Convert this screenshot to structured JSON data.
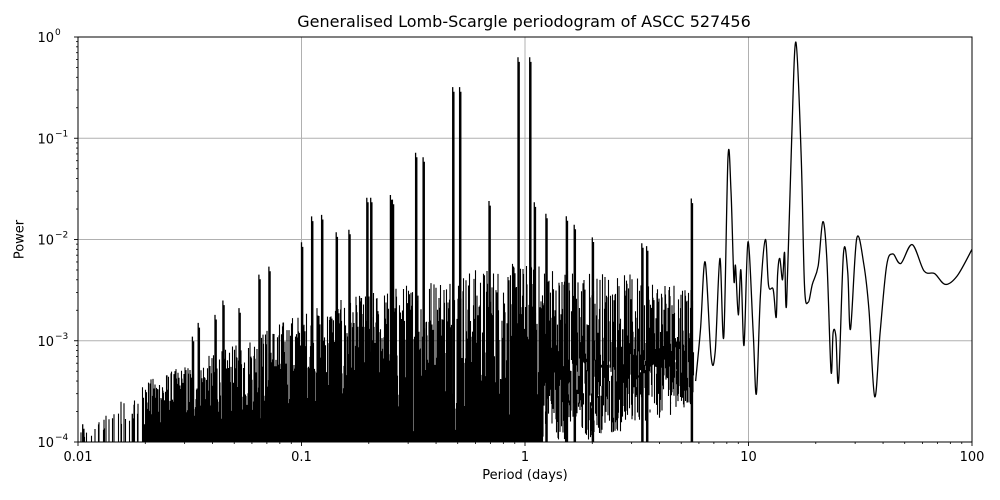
{
  "chart_data": {
    "type": "line",
    "title": "Generalised Lomb-Scargle periodogram of ASCC 527456",
    "xlabel": "Period (days)",
    "ylabel": "Power",
    "xscale": "log",
    "yscale": "log",
    "xlim": [
      0.01,
      100
    ],
    "ylim": [
      0.0001,
      1
    ],
    "grid": true,
    "legend": null,
    "x_ticks": [
      {
        "value": 0.01,
        "label": "0.01"
      },
      {
        "value": 0.1,
        "label": "0.1"
      },
      {
        "value": 1,
        "label": "1"
      },
      {
        "value": 10,
        "label": "10"
      },
      {
        "value": 100,
        "label": "100"
      }
    ],
    "y_ticks": [
      {
        "value": 0.0001,
        "base": "10",
        "exp": "−4"
      },
      {
        "value": 0.001,
        "base": "10",
        "exp": "−3"
      },
      {
        "value": 0.01,
        "base": "10",
        "exp": "−2"
      },
      {
        "value": 0.1,
        "base": "10",
        "exp": "−1"
      },
      {
        "value": 1,
        "base": "10",
        "exp": "0"
      }
    ],
    "line_color": "#000000",
    "grid_color": "#b0b0b0",
    "noise_floor": [
      {
        "period": 0.01,
        "low": 0.0001,
        "high": 0.00012
      },
      {
        "period": 0.02,
        "low": 0.0001,
        "high": 0.0004
      },
      {
        "period": 0.05,
        "low": 0.0001,
        "high": 0.0009
      },
      {
        "period": 0.1,
        "low": 0.0001,
        "high": 0.002
      },
      {
        "period": 0.2,
        "low": 0.0001,
        "high": 0.003
      },
      {
        "period": 0.5,
        "low": 0.0001,
        "high": 0.005
      },
      {
        "period": 1,
        "low": 0.0001,
        "high": 0.006
      },
      {
        "period": 2,
        "low": 0.0001,
        "high": 0.005
      },
      {
        "period": 5,
        "low": 0.0002,
        "high": 0.004
      }
    ],
    "peaks": [
      {
        "period": 0.0105,
        "power": 0.00015
      },
      {
        "period": 0.0175,
        "power": 0.00019
      },
      {
        "period": 0.0325,
        "power": 0.0011
      },
      {
        "period": 0.0345,
        "power": 0.0015
      },
      {
        "period": 0.041,
        "power": 0.0018
      },
      {
        "period": 0.0445,
        "power": 0.0025
      },
      {
        "period": 0.0525,
        "power": 0.0021
      },
      {
        "period": 0.0645,
        "power": 0.0045
      },
      {
        "period": 0.0715,
        "power": 0.0054
      },
      {
        "period": 0.1,
        "power": 0.0094
      },
      {
        "period": 0.111,
        "power": 0.0169
      },
      {
        "period": 0.123,
        "power": 0.0175
      },
      {
        "period": 0.143,
        "power": 0.0118
      },
      {
        "period": 0.163,
        "power": 0.0125
      },
      {
        "period": 0.196,
        "power": 0.0259
      },
      {
        "period": 0.204,
        "power": 0.0259
      },
      {
        "period": 0.25,
        "power": 0.0275
      },
      {
        "period": 0.255,
        "power": 0.0248
      },
      {
        "period": 0.324,
        "power": 0.072
      },
      {
        "period": 0.35,
        "power": 0.065
      },
      {
        "period": 0.475,
        "power": 0.32
      },
      {
        "period": 0.51,
        "power": 0.32
      },
      {
        "period": 0.93,
        "power": 0.63
      },
      {
        "period": 1.05,
        "power": 0.63
      },
      {
        "period": 0.69,
        "power": 0.024
      },
      {
        "period": 1.1,
        "power": 0.0233
      },
      {
        "period": 1.24,
        "power": 0.018
      },
      {
        "period": 1.53,
        "power": 0.017
      },
      {
        "period": 1.66,
        "power": 0.014
      },
      {
        "period": 2.0,
        "power": 0.0105
      },
      {
        "period": 3.33,
        "power": 0.0092
      },
      {
        "period": 3.5,
        "power": 0.0086
      },
      {
        "period": 5.55,
        "power": 0.0254
      }
    ],
    "smooth_tail": [
      {
        "period": 5.8,
        "power": 0.0004
      },
      {
        "period": 6.1,
        "power": 0.0013
      },
      {
        "period": 6.4,
        "power": 0.006
      },
      {
        "period": 6.8,
        "power": 0.0007
      },
      {
        "period": 7.1,
        "power": 0.0008
      },
      {
        "period": 7.45,
        "power": 0.0065
      },
      {
        "period": 7.75,
        "power": 0.0011
      },
      {
        "period": 8.1,
        "power": 0.065
      },
      {
        "period": 8.35,
        "power": 0.03
      },
      {
        "period": 8.6,
        "power": 0.004
      },
      {
        "period": 8.75,
        "power": 0.0055
      },
      {
        "period": 9.0,
        "power": 0.0018
      },
      {
        "period": 9.25,
        "power": 0.005
      },
      {
        "period": 9.55,
        "power": 0.0009
      },
      {
        "period": 9.95,
        "power": 0.0095
      },
      {
        "period": 10.5,
        "power": 0.0012
      },
      {
        "period": 10.85,
        "power": 0.0003
      },
      {
        "period": 11.3,
        "power": 0.0028
      },
      {
        "period": 11.9,
        "power": 0.01
      },
      {
        "period": 12.3,
        "power": 0.0035
      },
      {
        "period": 12.9,
        "power": 0.0032
      },
      {
        "period": 13.3,
        "power": 0.0017
      },
      {
        "period": 13.5,
        "power": 0.0045
      },
      {
        "period": 13.8,
        "power": 0.0065
      },
      {
        "period": 14.2,
        "power": 0.004
      },
      {
        "period": 14.5,
        "power": 0.0074
      },
      {
        "period": 14.8,
        "power": 0.0023
      },
      {
        "period": 15.6,
        "power": 0.1
      },
      {
        "period": 16.3,
        "power": 0.89
      },
      {
        "period": 17.2,
        "power": 0.07
      },
      {
        "period": 17.8,
        "power": 0.0035
      },
      {
        "period": 18.5,
        "power": 0.0024
      },
      {
        "period": 19.3,
        "power": 0.0036
      },
      {
        "period": 20.5,
        "power": 0.0055
      },
      {
        "period": 21.5,
        "power": 0.015
      },
      {
        "period": 22.4,
        "power": 0.0065
      },
      {
        "period": 23.4,
        "power": 0.0005
      },
      {
        "period": 23.9,
        "power": 0.0012
      },
      {
        "period": 24.6,
        "power": 0.0011
      },
      {
        "period": 25.3,
        "power": 0.0004
      },
      {
        "period": 26.6,
        "power": 0.0073
      },
      {
        "period": 27.8,
        "power": 0.0048
      },
      {
        "period": 28.6,
        "power": 0.0013
      },
      {
        "period": 30.5,
        "power": 0.0102
      },
      {
        "period": 32.8,
        "power": 0.0057
      },
      {
        "period": 34.6,
        "power": 0.002
      },
      {
        "period": 36.7,
        "power": 0.00028
      },
      {
        "period": 38.8,
        "power": 0.0012
      },
      {
        "period": 41.5,
        "power": 0.0055
      },
      {
        "period": 44.2,
        "power": 0.0072
      },
      {
        "period": 48.0,
        "power": 0.0058
      },
      {
        "period": 54.0,
        "power": 0.0089
      },
      {
        "period": 61.0,
        "power": 0.0049
      },
      {
        "period": 68.0,
        "power": 0.0046
      },
      {
        "period": 76.0,
        "power": 0.0036
      },
      {
        "period": 86.0,
        "power": 0.0044
      },
      {
        "period": 100.0,
        "power": 0.008
      }
    ]
  }
}
